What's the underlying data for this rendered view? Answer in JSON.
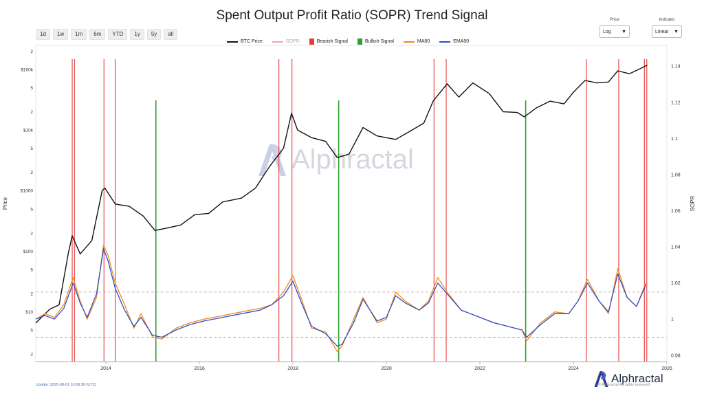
{
  "title": "Spent Output Profit Ratio (SOPR) Trend Signal",
  "range_buttons": [
    "1d",
    "1w",
    "1m",
    "6m",
    "YTD",
    "1y",
    "5y",
    "all"
  ],
  "controls": {
    "price": {
      "label": "Price",
      "value": "Log"
    },
    "indicator": {
      "label": "Indicator",
      "value": "Linear"
    }
  },
  "legend": [
    {
      "name": "BTC Price",
      "color": "#111111",
      "kind": "line"
    },
    {
      "name": "SOPR",
      "color": "#f4a6a6",
      "kind": "line"
    },
    {
      "name": "Bearish Signal",
      "color": "#e23b3b",
      "kind": "box"
    },
    {
      "name": "Bullish Signal",
      "color": "#2ea02e",
      "kind": "box"
    },
    {
      "name": "MA80",
      "color": "#f28a1e",
      "kind": "line"
    },
    {
      "name": "EMA90",
      "color": "#2f4fc4",
      "kind": "line"
    }
  ],
  "watermark": "Alphractal",
  "brand": "Alphractal",
  "footer": {
    "update": "Update: 2025-08-01 10:08:36 (UTC)",
    "rights": "© Alphractal All rights reserved"
  },
  "chart_data": {
    "type": "line",
    "xlabel": "",
    "ylabel_left": "Price",
    "ylabel_right": "SOPR",
    "x_ticks": [
      "2014",
      "2016",
      "2018",
      "2020",
      "2022",
      "2024",
      "2026"
    ],
    "y_left_scale": "log",
    "y_left_ticks": [
      "2",
      "5",
      "$1",
      "2",
      "5",
      "$10",
      "2",
      "5",
      "$100",
      "2",
      "5",
      "$1000",
      "2",
      "5",
      "$10k",
      "2",
      "5",
      "$100k",
      "2"
    ],
    "y_left_range": [
      1.5,
      250000
    ],
    "y_right_ticks": [
      "0.98",
      "1",
      "1.02",
      "1.04",
      "1.06",
      "1.08",
      "1.1",
      "1.12",
      "1.14"
    ],
    "y_right_range": [
      0.9765,
      1.1515
    ],
    "x_range": [
      2012.5,
      2026.0
    ],
    "reference_lines": [
      {
        "y": 1.015,
        "color": "#d9a0b0",
        "style": "dashed"
      },
      {
        "y": 0.99,
        "color": "#7fb6d8",
        "style": "dashed"
      }
    ],
    "series": [
      {
        "name": "BTC Price",
        "color": "#111111",
        "axis": "left",
        "x": [
          2012.5,
          2012.8,
          2013.0,
          2013.2,
          2013.28,
          2013.45,
          2013.7,
          2013.92,
          2013.98,
          2014.2,
          2014.5,
          2014.8,
          2015.05,
          2015.3,
          2015.6,
          2015.9,
          2016.2,
          2016.5,
          2016.9,
          2017.2,
          2017.5,
          2017.8,
          2017.97,
          2018.1,
          2018.4,
          2018.7,
          2018.95,
          2019.2,
          2019.5,
          2019.8,
          2020.2,
          2020.5,
          2020.8,
          2021.0,
          2021.3,
          2021.55,
          2021.85,
          2022.2,
          2022.5,
          2022.8,
          2022.95,
          2023.2,
          2023.5,
          2023.8,
          2024.0,
          2024.25,
          2024.5,
          2024.75,
          2024.95,
          2025.2,
          2025.45,
          2025.58
        ],
        "y": [
          6.5,
          11,
          13,
          95,
          180,
          90,
          150,
          1000,
          1100,
          600,
          550,
          380,
          220,
          240,
          270,
          400,
          420,
          650,
          750,
          1100,
          2500,
          5000,
          19000,
          10000,
          7500,
          6500,
          3500,
          4000,
          11000,
          8000,
          7000,
          9500,
          13000,
          30000,
          58000,
          35000,
          60000,
          40000,
          20000,
          19500,
          16500,
          23000,
          30000,
          27000,
          42000,
          66000,
          60000,
          62000,
          95000,
          85000,
          105000,
          118000
        ]
      },
      {
        "name": "MA80",
        "color": "#f28a1e",
        "axis": "right",
        "x": [
          2012.5,
          2012.7,
          2012.9,
          2013.1,
          2013.3,
          2013.45,
          2013.6,
          2013.8,
          2013.95,
          2014.05,
          2014.2,
          2014.4,
          2014.6,
          2014.75,
          2015.0,
          2015.2,
          2015.5,
          2015.8,
          2016.1,
          2016.5,
          2016.9,
          2017.3,
          2017.55,
          2017.8,
          2018.0,
          2018.2,
          2018.4,
          2018.7,
          2018.95,
          2019.05,
          2019.3,
          2019.5,
          2019.8,
          2020.0,
          2020.2,
          2020.4,
          2020.7,
          2020.9,
          2021.1,
          2021.3,
          2021.6,
          2021.8,
          2022.0,
          2022.3,
          2022.6,
          2022.9,
          2023.0,
          2023.3,
          2023.6,
          2023.9,
          2024.1,
          2024.3,
          2024.55,
          2024.75,
          2024.95,
          2025.15,
          2025.35,
          2025.55
        ],
        "y": [
          1.0,
          1.003,
          1.001,
          1.008,
          1.023,
          1.01,
          1.0,
          1.012,
          1.041,
          1.035,
          1.02,
          1.008,
          0.995,
          1.003,
          0.99,
          0.989,
          0.995,
          0.998,
          1.0,
          1.002,
          1.004,
          1.006,
          1.008,
          1.015,
          1.024,
          1.01,
          0.995,
          0.993,
          0.982,
          0.985,
          1.0,
          1.012,
          0.998,
          1.0,
          1.015,
          1.01,
          1.005,
          1.01,
          1.023,
          1.015,
          1.005,
          1.003,
          1.001,
          0.998,
          0.996,
          0.994,
          0.988,
          0.998,
          1.004,
          1.003,
          1.01,
          1.022,
          1.01,
          1.003,
          1.028,
          1.012,
          1.007,
          1.02
        ]
      },
      {
        "name": "EMA90",
        "color": "#2f4fc4",
        "axis": "right",
        "x": [
          2012.5,
          2012.7,
          2012.9,
          2013.1,
          2013.3,
          2013.45,
          2013.6,
          2013.8,
          2013.95,
          2014.05,
          2014.2,
          2014.4,
          2014.6,
          2014.75,
          2015.0,
          2015.2,
          2015.5,
          2015.8,
          2016.1,
          2016.5,
          2016.9,
          2017.3,
          2017.55,
          2017.8,
          2018.0,
          2018.2,
          2018.4,
          2018.7,
          2018.95,
          2019.05,
          2019.3,
          2019.5,
          2019.8,
          2020.0,
          2020.2,
          2020.4,
          2020.7,
          2020.9,
          2021.1,
          2021.3,
          2021.6,
          2021.8,
          2022.0,
          2022.3,
          2022.6,
          2022.9,
          2023.0,
          2023.3,
          2023.6,
          2023.9,
          2024.1,
          2024.3,
          2024.55,
          2024.75,
          2024.95,
          2025.15,
          2025.35,
          2025.55
        ],
        "y": [
          1.0,
          1.002,
          1.0,
          1.006,
          1.02,
          1.009,
          1.001,
          1.014,
          1.039,
          1.032,
          1.017,
          1.005,
          0.996,
          1.001,
          0.991,
          0.99,
          0.994,
          0.997,
          0.999,
          1.001,
          1.003,
          1.005,
          1.008,
          1.013,
          1.021,
          1.008,
          0.996,
          0.992,
          0.985,
          0.986,
          0.998,
          1.011,
          0.999,
          1.001,
          1.013,
          1.009,
          1.005,
          1.009,
          1.02,
          1.014,
          1.005,
          1.003,
          1.001,
          0.998,
          0.996,
          0.994,
          0.99,
          0.997,
          1.003,
          1.003,
          1.01,
          1.02,
          1.01,
          1.004,
          1.025,
          1.012,
          1.007,
          1.019
        ]
      }
    ],
    "bearish_signals": [
      2013.28,
      2013.33,
      2013.96,
      2014.2,
      2017.7,
      2017.98,
      2021.02,
      2021.28,
      2024.28,
      2024.97,
      2025.52,
      2025.57
    ],
    "bullish_signals": [
      2015.07,
      2018.98,
      2022.98
    ]
  }
}
